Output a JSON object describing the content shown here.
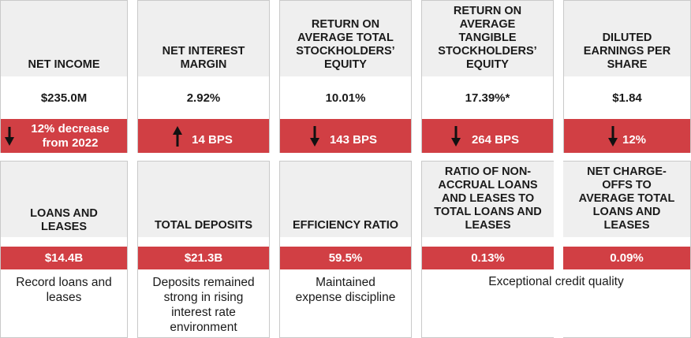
{
  "top_metrics": [
    {
      "label": "NET INCOME",
      "value": "$235.0M",
      "change_text": "12% decrease\nfrom 2022",
      "direction": "down"
    },
    {
      "label": "NET INTEREST\nMARGIN",
      "value": "2.92%",
      "change_text": "14 BPS",
      "direction": "up"
    },
    {
      "label": "RETURN ON\nAVERAGE TOTAL\nSTOCKHOLDERS’\nEQUITY",
      "value": "10.01%",
      "change_text": "143 BPS",
      "direction": "down"
    },
    {
      "label": "RETURN ON\nAVERAGE\nTANGIBLE\nSTOCKHOLDERS’\nEQUITY",
      "value": "17.39%*",
      "change_text": "264 BPS",
      "direction": "down"
    },
    {
      "label": "DILUTED\nEARNINGS PER\nSHARE",
      "value": "$1.84",
      "change_text": "12%",
      "direction": "down"
    }
  ],
  "bottom_metrics": [
    {
      "label": "LOANS AND\nLEASES",
      "value": "$14.4B"
    },
    {
      "label": "TOTAL DEPOSITS",
      "value": "$21.3B"
    },
    {
      "label": "EFFICIENCY RATIO",
      "value": "59.5%"
    },
    {
      "label": "RATIO OF NON-\nACCRUAL LOANS\nAND LEASES TO\nTOTAL LOANS AND\nLEASES",
      "value": "0.13%"
    },
    {
      "label": "NET CHARGE-\nOFFS TO\nAVERAGE TOTAL\nLOANS AND\nLEASES",
      "value": "0.09%"
    }
  ],
  "notes": [
    "Record loans and\nleases",
    "Deposits remained\nstrong in rising\ninterest rate\nenvironment",
    "Maintained\nexpense discipline",
    "Exceptional credit quality"
  ],
  "colors": {
    "accent": "#d13f44",
    "header_bg": "#efefef",
    "border": "#c9c9c9"
  }
}
